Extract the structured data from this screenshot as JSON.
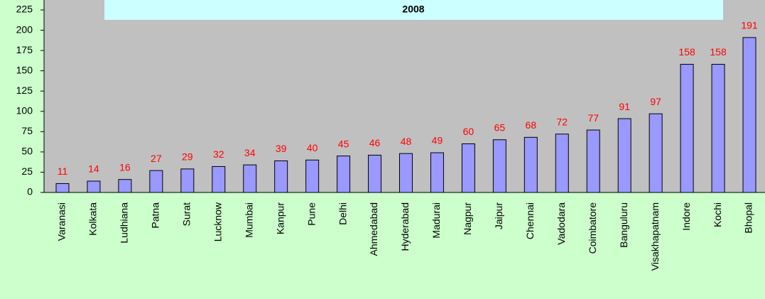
{
  "chart_data": {
    "type": "bar",
    "title": "2008",
    "categories": [
      "Varanasi",
      "Kolkata",
      "Ludhiana",
      "Patna",
      "Surat",
      "Lucknow",
      "Mumbai",
      "Kanpur",
      "Pune",
      "Delhi",
      "Ahmedabad",
      "Hyderabad",
      "Madurai",
      "Nagpur",
      "Jaipur",
      "Chennai",
      "Vadodara",
      "Coimbatore",
      "Banguluru",
      "Visakhapatnam",
      "Indore",
      "Kochi",
      "Bhopal"
    ],
    "values": [
      11,
      14,
      16,
      27,
      29,
      32,
      34,
      39,
      40,
      45,
      46,
      48,
      49,
      60,
      65,
      68,
      72,
      77,
      91,
      97,
      158,
      158,
      191
    ],
    "color": "#9999ff",
    "label_color": "#ff0000",
    "ylim": [
      0,
      225
    ],
    "yticks": [
      0,
      25,
      50,
      75,
      100,
      125,
      150,
      175,
      200,
      225
    ],
    "grid": false
  }
}
